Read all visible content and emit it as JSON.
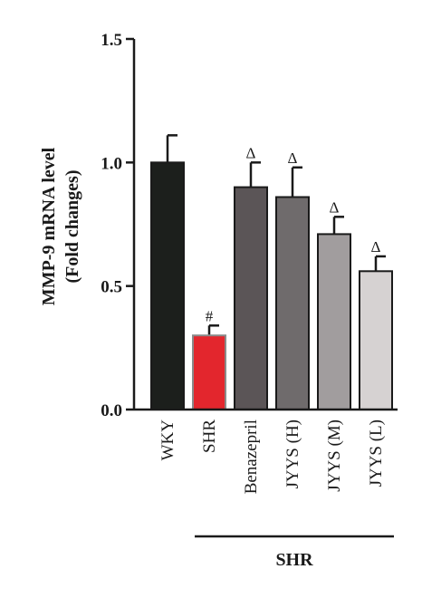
{
  "chart_data": {
    "type": "bar",
    "title": "",
    "ylabel_lines": [
      "MMP-9 mRNA level",
      "(Fold changes)"
    ],
    "xlabel": "",
    "ylim": [
      0,
      1.5
    ],
    "yticks": [
      "0.0",
      "0.5",
      "1.0",
      "1.5"
    ],
    "categories": [
      "WKY",
      "SHR",
      "Benazepril",
      "JYYS (H)",
      "JYYS (M)",
      "JYYS (L)"
    ],
    "values": [
      1.0,
      0.3,
      0.9,
      0.86,
      0.71,
      0.56
    ],
    "errors": [
      0.11,
      0.04,
      0.1,
      0.12,
      0.07,
      0.06
    ],
    "significance": [
      "",
      "#",
      "Δ",
      "Δ",
      "Δ",
      "Δ"
    ],
    "colors": [
      "#1c1f1c",
      "#e3262d",
      "#5b5557",
      "#6f6b6c",
      "#a19d9e",
      "#d6d2d2"
    ],
    "group_label": "SHR",
    "group_categories": [
      "SHR",
      "Benazepril",
      "JYYS (H)",
      "JYYS (M)",
      "JYYS (L)"
    ],
    "grid": false,
    "legend": "none"
  }
}
